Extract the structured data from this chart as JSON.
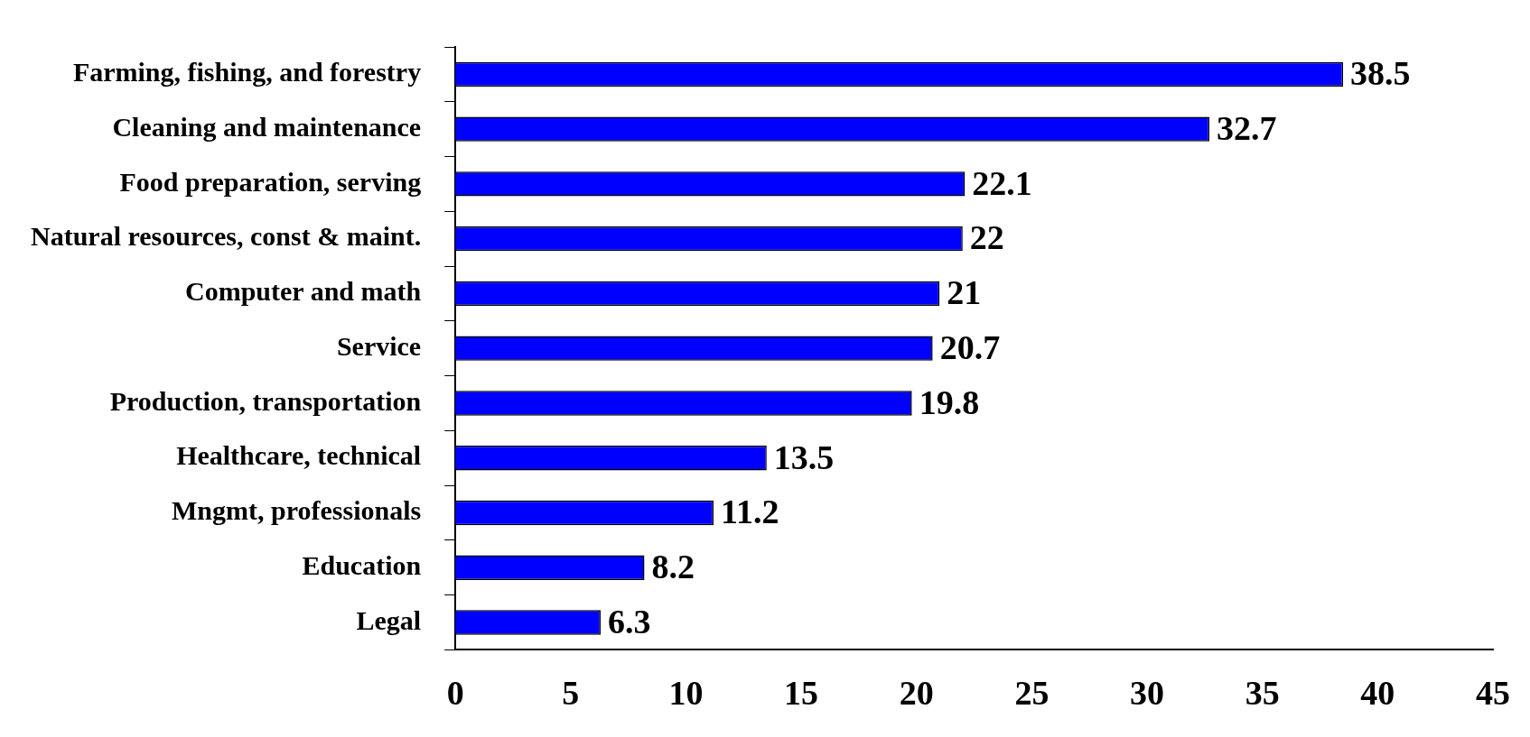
{
  "chart_data": {
    "type": "bar",
    "orientation": "horizontal",
    "categories": [
      "Farming, fishing, and forestry",
      "Cleaning and maintenance",
      "Food preparation, serving",
      "Natural resources, const & maint.",
      "Computer and math",
      "Service",
      "Production, transportation",
      "Healthcare, technical",
      "Mngmt, professionals",
      "Education",
      "Legal"
    ],
    "values": [
      38.5,
      32.7,
      22.1,
      22,
      21,
      20.7,
      19.8,
      13.5,
      11.2,
      8.2,
      6.3
    ],
    "color": "#0000ff",
    "xlim": [
      0,
      45
    ],
    "xticks": [
      0,
      5,
      10,
      15,
      20,
      25,
      30,
      35,
      40,
      45
    ],
    "grid": false,
    "data_labels": true
  }
}
